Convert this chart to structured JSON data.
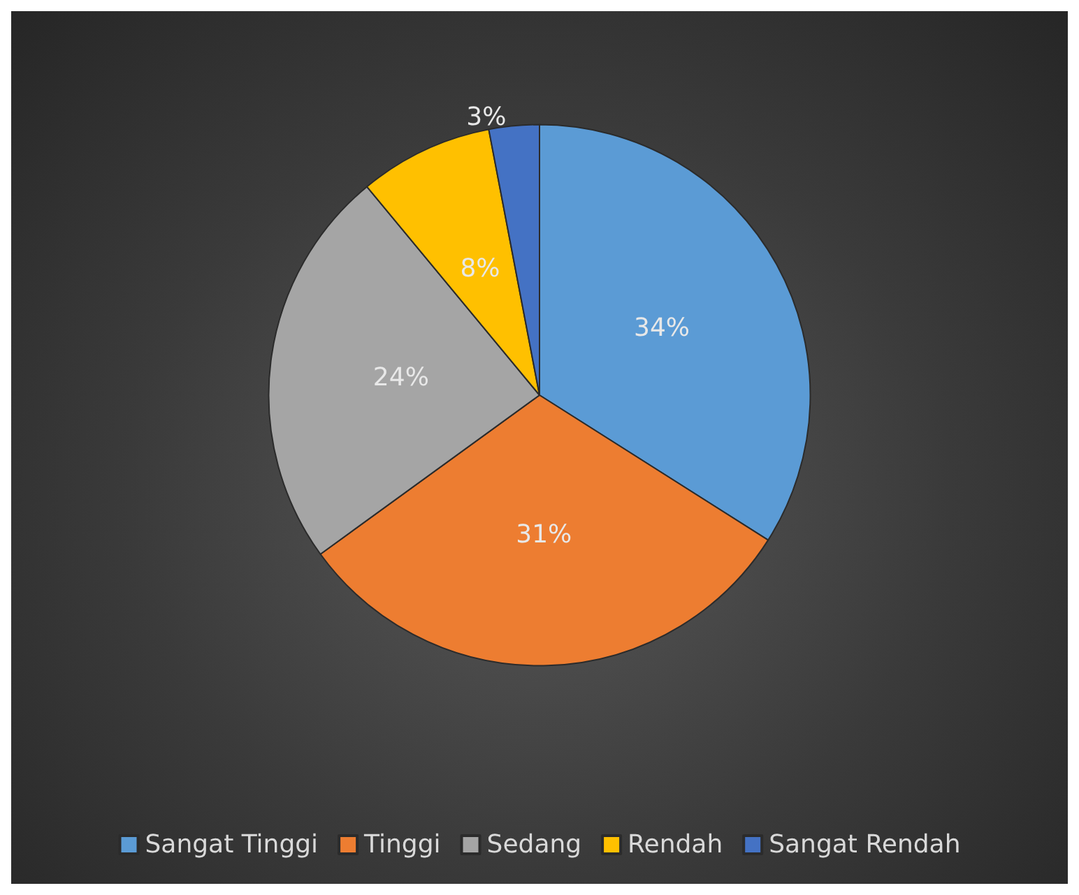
{
  "chart_data": {
    "type": "pie",
    "categories": [
      "Sangat Tinggi",
      "Tinggi",
      "Sedang",
      "Rendah",
      "Sangat Rendah"
    ],
    "values": [
      34,
      31,
      24,
      8,
      3
    ],
    "colors": [
      "#5b9bd5",
      "#ed7d31",
      "#a5a5a5",
      "#ffc000",
      "#4472c4"
    ],
    "value_labels": [
      "34%",
      "31%",
      "24%",
      "8%",
      "3%"
    ],
    "legend": "bottom"
  }
}
